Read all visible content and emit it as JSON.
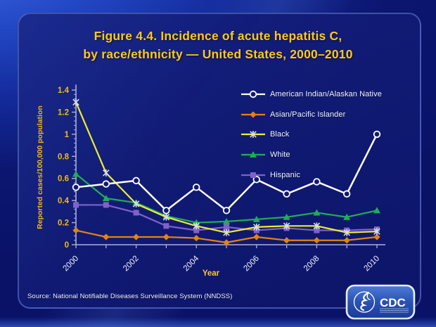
{
  "slide": {
    "title_lines": [
      "Figure 4.4. Incidence of acute hepatitis C,",
      "by race/ethnicity — United States, 2000–2010"
    ],
    "source": "Source: National Notifiable Diseases Surveillance System (NNDSS)",
    "logo": {
      "cdc_label": "CDC"
    },
    "colors": {
      "title_gold": "#ffc81a",
      "axis_label_gold": "#f0b91e",
      "axis_line": "#aeaedd",
      "tick_text_white": "#eef1fb",
      "panel_navy": "#101a72"
    }
  },
  "chart_data": {
    "type": "line",
    "title": "",
    "xlabel": "Year",
    "ylabel": "Reported cases/100,000 population",
    "x": [
      2000,
      2001,
      2002,
      2003,
      2004,
      2005,
      2006,
      2007,
      2008,
      2009,
      2010
    ],
    "x_tick_labels_shown": [
      "2000",
      "2002",
      "2004",
      "2006",
      "2008",
      "2010"
    ],
    "ylim": [
      0,
      1.4
    ],
    "y_ticks": [
      0,
      0.2,
      0.4,
      0.6,
      0.8,
      1,
      1.2,
      1.4
    ],
    "y_tick_labels": [
      "0",
      "0.2",
      "0.4",
      "0.6",
      "0.8",
      "1",
      "1.2",
      "1.4"
    ],
    "grid": false,
    "legend_position": "inside upper right",
    "series": [
      {
        "name": "American Indian/Alaskan Native",
        "color": "#ffffff",
        "marker": "circle-open",
        "values": [
          0.52,
          0.55,
          0.58,
          0.31,
          0.52,
          0.31,
          0.59,
          0.46,
          0.57,
          0.46,
          1.0
        ]
      },
      {
        "name": "Asian/Pacific Islander",
        "color": "#e5820f",
        "marker": "diamond",
        "values": [
          0.13,
          0.07,
          0.07,
          0.07,
          0.06,
          0.02,
          0.07,
          0.04,
          0.04,
          0.04,
          0.07
        ]
      },
      {
        "name": "Black",
        "color": "#ecee32",
        "marker": "x",
        "values": [
          1.29,
          0.65,
          0.37,
          0.25,
          0.17,
          0.11,
          0.16,
          0.17,
          0.17,
          0.11,
          0.12
        ]
      },
      {
        "name": "White",
        "color": "#1fae54",
        "marker": "triangle",
        "values": [
          0.64,
          0.42,
          0.38,
          0.26,
          0.2,
          0.21,
          0.23,
          0.25,
          0.29,
          0.25,
          0.31
        ]
      },
      {
        "name": "Hispanic",
        "color": "#8161c8",
        "marker": "square",
        "values": [
          0.36,
          0.36,
          0.29,
          0.17,
          0.13,
          0.16,
          0.13,
          0.15,
          0.13,
          0.13,
          0.14
        ]
      }
    ]
  }
}
